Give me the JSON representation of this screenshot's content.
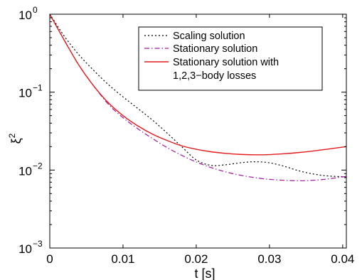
{
  "chart_data": {
    "type": "line",
    "xlabel": "t [s]",
    "ylabel_base": "ξ",
    "ylabel_exp": "2",
    "ylabel": "ξ^2",
    "xlim": [
      0,
      0.0405
    ],
    "ylim": [
      0.001,
      1
    ],
    "yscale": "log",
    "grid": false,
    "legend_position": "top-right",
    "x_ticks": [
      {
        "value": 0,
        "label": "0"
      },
      {
        "value": 0.01,
        "label": "0.01"
      },
      {
        "value": 0.02,
        "label": "0.02"
      },
      {
        "value": 0.03,
        "label": "0.03"
      },
      {
        "value": 0.04,
        "label": "0.04"
      }
    ],
    "y_ticks": [
      {
        "value": 1,
        "base": "10",
        "exp": "0"
      },
      {
        "value": 0.1,
        "base": "10",
        "exp": "−1"
      },
      {
        "value": 0.01,
        "base": "10",
        "exp": "−2"
      },
      {
        "value": 0.001,
        "base": "10",
        "exp": "−3"
      }
    ],
    "series": [
      {
        "name": "Scaling solution",
        "color": "#000000",
        "dash": "dotted",
        "x": [
          0,
          0.002,
          0.004,
          0.006,
          0.008,
          0.01,
          0.012,
          0.014,
          0.016,
          0.018,
          0.02,
          0.022,
          0.024,
          0.026,
          0.028,
          0.03,
          0.032,
          0.034,
          0.036,
          0.038,
          0.0405
        ],
        "y": [
          1.0,
          0.52,
          0.3,
          0.19,
          0.125,
          0.087,
          0.062,
          0.044,
          0.03,
          0.02,
          0.0135,
          0.0115,
          0.0117,
          0.0124,
          0.0128,
          0.0124,
          0.0112,
          0.0098,
          0.0089,
          0.0084,
          0.0082
        ]
      },
      {
        "name": "Stationary solution",
        "color": "#a0199b",
        "dash": "dashdot",
        "x": [
          0,
          0.002,
          0.004,
          0.006,
          0.008,
          0.01,
          0.012,
          0.014,
          0.016,
          0.018,
          0.02,
          0.022,
          0.024,
          0.026,
          0.028,
          0.03,
          0.032,
          0.034,
          0.036,
          0.038,
          0.0405
        ],
        "y": [
          1.0,
          0.46,
          0.22,
          0.12,
          0.07,
          0.047,
          0.034,
          0.0255,
          0.0195,
          0.0155,
          0.0127,
          0.0108,
          0.0095,
          0.0086,
          0.008,
          0.0076,
          0.0074,
          0.0073,
          0.0074,
          0.0077,
          0.0083
        ]
      },
      {
        "name": "Stationary solution with\n1,2,3−body losses",
        "color": "#e41a1c",
        "dash": "solid",
        "x": [
          0,
          0.002,
          0.004,
          0.006,
          0.008,
          0.01,
          0.012,
          0.014,
          0.016,
          0.018,
          0.02,
          0.022,
          0.024,
          0.026,
          0.028,
          0.03,
          0.032,
          0.034,
          0.036,
          0.038,
          0.0405
        ],
        "y": [
          1.0,
          0.46,
          0.22,
          0.12,
          0.073,
          0.05,
          0.037,
          0.029,
          0.024,
          0.0205,
          0.0185,
          0.0172,
          0.0164,
          0.0159,
          0.0157,
          0.0158,
          0.0162,
          0.0168,
          0.0176,
          0.0186,
          0.02
        ]
      }
    ]
  }
}
